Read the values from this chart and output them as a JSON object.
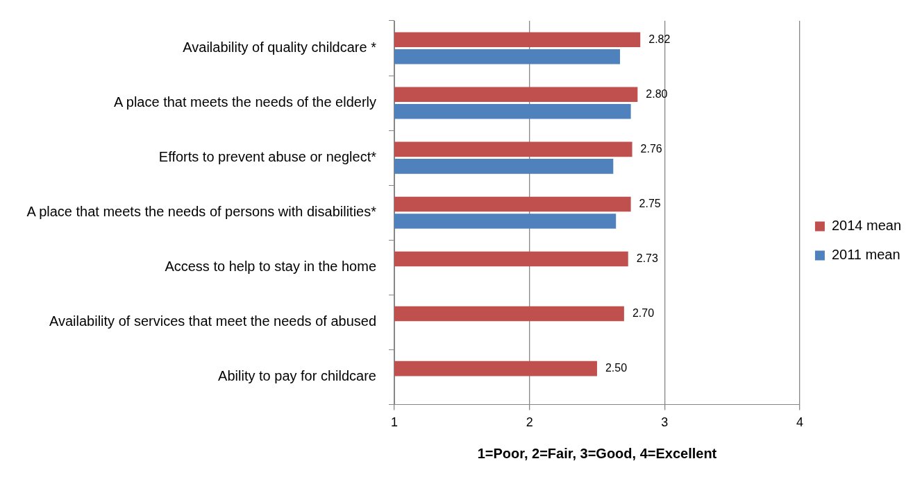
{
  "chart_data": {
    "type": "bar",
    "orientation": "horizontal",
    "xlabel": "1=Poor, 2=Fair, 3=Good, 4=Excellent",
    "categories": [
      "Availability of quality childcare *",
      "A place that meets the needs of the elderly",
      "Efforts to prevent abuse or neglect*",
      "A place that meets the needs of persons with disabilities*",
      "Access to help to stay in the home",
      "Availability of services that meet the needs of abused",
      "Ability to pay for childcare"
    ],
    "series": [
      {
        "name": "2014 mean",
        "color": "#c0504d",
        "values": [
          2.82,
          2.8,
          2.76,
          2.75,
          2.73,
          2.7,
          2.5
        ],
        "value_labels": [
          "2.82",
          "2.80",
          "2.76",
          "2.75",
          "2.73",
          "2.70",
          "2.50"
        ]
      },
      {
        "name": "2011 mean",
        "color": "#4f81bd",
        "values": [
          2.67,
          2.75,
          2.62,
          2.64,
          null,
          null,
          null
        ]
      }
    ],
    "xlim": [
      1,
      4
    ],
    "xticks": [
      1,
      2,
      3,
      4
    ],
    "grid": "x",
    "legend": "right"
  }
}
